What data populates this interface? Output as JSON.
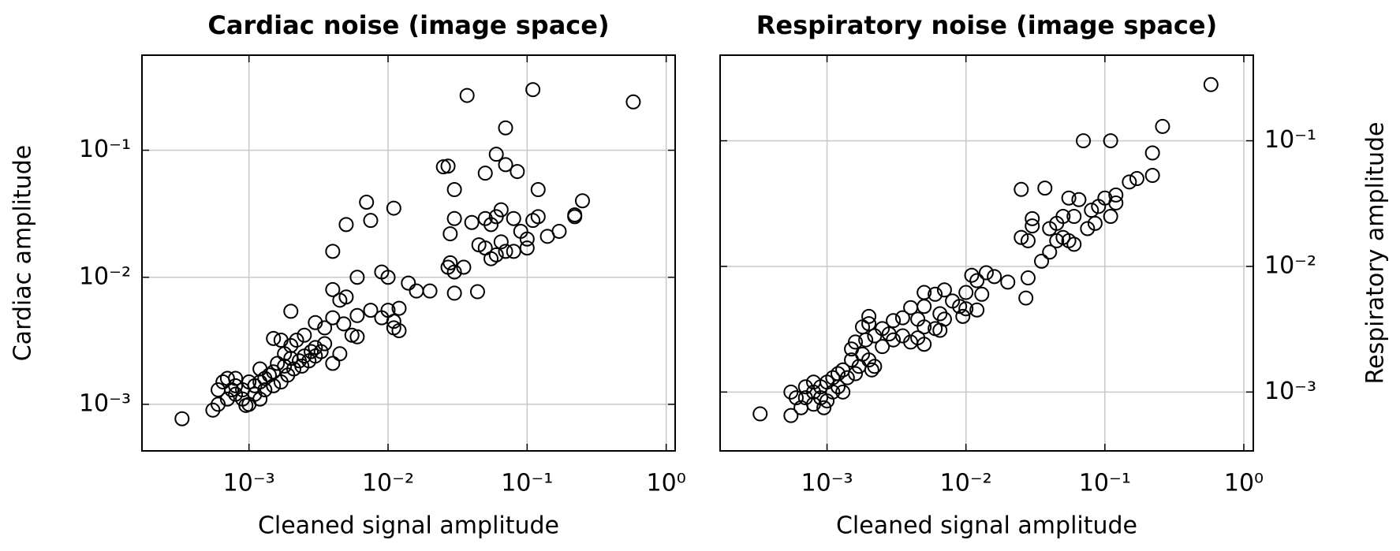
{
  "chart_data": [
    {
      "type": "scatter",
      "title": "Cardiac noise (image space)",
      "xlabel": "Cleaned signal amplitude",
      "ylabel": "Cardiac amplitude",
      "xscale": "log",
      "yscale": "log",
      "grid": true,
      "y_axis": "left",
      "color": "#000000",
      "marker": "open-circle",
      "xlim": [
        0.00017,
        1.16
      ],
      "ylim": [
        0.00043,
        0.56
      ],
      "xticks": [
        {
          "value": 0.001,
          "label": "10⁻³"
        },
        {
          "value": 0.01,
          "label": "10⁻²"
        },
        {
          "value": 0.1,
          "label": "10⁻¹"
        },
        {
          "value": 1,
          "label": "10⁰"
        }
      ],
      "yticks": [
        {
          "value": 0.001,
          "label": "10⁻³"
        },
        {
          "value": 0.01,
          "label": "10⁻²"
        },
        {
          "value": 0.1,
          "label": "10⁻¹"
        }
      ],
      "x": [
        0.00033,
        0.58,
        0.11,
        0.037,
        0.07,
        0.06,
        0.07,
        0.085,
        0.05,
        0.025,
        0.027,
        0.03,
        0.12,
        0.007,
        0.011,
        0.005,
        0.0075,
        0.25,
        0.22,
        0.22,
        0.17,
        0.14,
        0.12,
        0.11,
        0.1,
        0.1,
        0.08,
        0.07,
        0.09,
        0.08,
        0.065,
        0.06,
        0.055,
        0.05,
        0.045,
        0.05,
        0.04,
        0.03,
        0.028,
        0.055,
        0.06,
        0.065,
        0.035,
        0.028,
        0.03,
        0.027,
        0.03,
        0.044,
        0.004,
        0.009,
        0.01,
        0.014,
        0.016,
        0.02,
        0.006,
        0.004,
        0.005,
        0.0045,
        0.006,
        0.0075,
        0.01,
        0.012,
        0.009,
        0.011,
        0.012,
        0.011,
        0.002,
        0.0048,
        0.004,
        0.0035,
        0.003,
        0.0055,
        0.006,
        0.0025,
        0.0022,
        0.0015,
        0.0017,
        0.004,
        0.0045,
        0.0035,
        0.003,
        0.0028,
        0.0025,
        0.0023,
        0.002,
        0.0018,
        0.0016,
        0.0015,
        0.0014,
        0.0013,
        0.0012,
        0.0011,
        0.001,
        0.0009,
        0.0008,
        0.0007,
        0.00065,
        0.0006,
        0.00055,
        0.0006,
        0.0007,
        0.0008,
        0.0009,
        0.001,
        0.00095,
        0.0011,
        0.0013,
        0.0015,
        0.0017,
        0.0019,
        0.0021,
        0.0024,
        0.0027,
        0.003,
        0.0033,
        0.0012,
        0.0008,
        0.00075,
        0.0018,
        0.002,
        0.0012
      ],
      "y": [
        0.00077,
        0.24,
        0.3,
        0.27,
        0.15,
        0.093,
        0.077,
        0.068,
        0.066,
        0.074,
        0.075,
        0.049,
        0.049,
        0.039,
        0.035,
        0.026,
        0.028,
        0.04,
        0.031,
        0.03,
        0.023,
        0.021,
        0.03,
        0.028,
        0.02,
        0.017,
        0.016,
        0.016,
        0.023,
        0.029,
        0.034,
        0.03,
        0.026,
        0.029,
        0.018,
        0.017,
        0.027,
        0.029,
        0.022,
        0.014,
        0.015,
        0.019,
        0.012,
        0.013,
        0.011,
        0.012,
        0.0075,
        0.0077,
        0.016,
        0.011,
        0.01,
        0.009,
        0.0078,
        0.0078,
        0.01,
        0.008,
        0.007,
        0.0066,
        0.005,
        0.0055,
        0.0055,
        0.0057,
        0.0048,
        0.0045,
        0.0038,
        0.004,
        0.0054,
        0.0043,
        0.0048,
        0.004,
        0.0044,
        0.0035,
        0.0034,
        0.0035,
        0.0032,
        0.0033,
        0.0032,
        0.0021,
        0.0025,
        0.003,
        0.0028,
        0.0026,
        0.0024,
        0.0022,
        0.0023,
        0.002,
        0.0021,
        0.0018,
        0.0017,
        0.0016,
        0.0015,
        0.0014,
        0.0015,
        0.0013,
        0.0014,
        0.0016,
        0.0015,
        0.0013,
        0.0009,
        0.001,
        0.0011,
        0.0012,
        0.0011,
        0.001,
        0.00098,
        0.0012,
        0.0013,
        0.0014,
        0.0015,
        0.0017,
        0.0019,
        0.002,
        0.0022,
        0.0024,
        0.0026,
        0.0011,
        0.0016,
        0.0013,
        0.0025,
        0.0029,
        0.0019
      ]
    },
    {
      "type": "scatter",
      "title": "Respiratory noise (image space)",
      "xlabel": "Cleaned signal amplitude",
      "ylabel": "Respiratory amplitude",
      "xscale": "log",
      "yscale": "log",
      "grid": true,
      "y_axis": "right",
      "color": "#000000",
      "marker": "open-circle",
      "xlim": [
        0.00017,
        1.17
      ],
      "ylim": [
        0.00034,
        0.48
      ],
      "xticks": [
        {
          "value": 0.001,
          "label": "10⁻³"
        },
        {
          "value": 0.01,
          "label": "10⁻²"
        },
        {
          "value": 0.1,
          "label": "10⁻¹"
        },
        {
          "value": 1,
          "label": "10⁰"
        }
      ],
      "yticks": [
        {
          "value": 0.001,
          "label": "10⁻³"
        },
        {
          "value": 0.01,
          "label": "10⁻²"
        },
        {
          "value": 0.1,
          "label": "10⁻¹"
        }
      ],
      "x": [
        0.00033,
        0.58,
        0.07,
        0.11,
        0.26,
        0.22,
        0.22,
        0.17,
        0.15,
        0.12,
        0.12,
        0.1,
        0.11,
        0.09,
        0.08,
        0.085,
        0.075,
        0.065,
        0.055,
        0.06,
        0.05,
        0.045,
        0.04,
        0.05,
        0.055,
        0.06,
        0.045,
        0.04,
        0.035,
        0.025,
        0.037,
        0.03,
        0.03,
        0.025,
        0.028,
        0.028,
        0.027,
        0.02,
        0.016,
        0.014,
        0.011,
        0.012,
        0.013,
        0.01,
        0.008,
        0.006,
        0.007,
        0.005,
        0.005,
        0.004,
        0.0065,
        0.009,
        0.0095,
        0.01,
        0.012,
        0.007,
        0.006,
        0.0065,
        0.0045,
        0.005,
        0.0035,
        0.003,
        0.002,
        0.002,
        0.0018,
        0.0025,
        0.0028,
        0.003,
        0.0035,
        0.004,
        0.0045,
        0.005,
        0.0022,
        0.0025,
        0.0019,
        0.0016,
        0.0015,
        0.0018,
        0.002,
        0.0022,
        0.0017,
        0.0015,
        0.0013,
        0.0012,
        0.0011,
        0.001,
        0.0009,
        0.0008,
        0.0007,
        0.0008,
        0.0009,
        0.001,
        0.0011,
        0.0012,
        0.0007,
        0.00065,
        0.00055,
        0.00055,
        0.0006,
        0.0008,
        0.00095,
        0.0014,
        0.0016,
        0.0013,
        0.0021
      ],
      "y": [
        0.00067,
        0.28,
        0.1,
        0.1,
        0.13,
        0.08,
        0.053,
        0.05,
        0.047,
        0.037,
        0.032,
        0.035,
        0.025,
        0.03,
        0.028,
        0.022,
        0.02,
        0.034,
        0.035,
        0.025,
        0.025,
        0.022,
        0.02,
        0.017,
        0.016,
        0.015,
        0.016,
        0.013,
        0.011,
        0.041,
        0.042,
        0.024,
        0.021,
        0.017,
        0.016,
        0.0081,
        0.0056,
        0.0075,
        0.0083,
        0.0089,
        0.0085,
        0.0077,
        0.006,
        0.0062,
        0.0053,
        0.006,
        0.0065,
        0.0062,
        0.0048,
        0.0047,
        0.0042,
        0.0048,
        0.004,
        0.0046,
        0.0045,
        0.0038,
        0.0032,
        0.0031,
        0.0038,
        0.0033,
        0.0039,
        0.0037,
        0.004,
        0.0035,
        0.0033,
        0.0032,
        0.0029,
        0.0026,
        0.0028,
        0.0025,
        0.0027,
        0.0024,
        0.0028,
        0.0023,
        0.0026,
        0.0025,
        0.0022,
        0.002,
        0.0018,
        0.0016,
        0.0016,
        0.0018,
        0.0015,
        0.0014,
        0.0013,
        0.0012,
        0.0011,
        0.0012,
        0.0011,
        0.001,
        0.0009,
        0.00085,
        0.001,
        0.0011,
        0.0009,
        0.00075,
        0.00065,
        0.001,
        0.0009,
        0.0008,
        0.00075,
        0.0013,
        0.0014,
        0.001,
        0.0015
      ]
    }
  ]
}
